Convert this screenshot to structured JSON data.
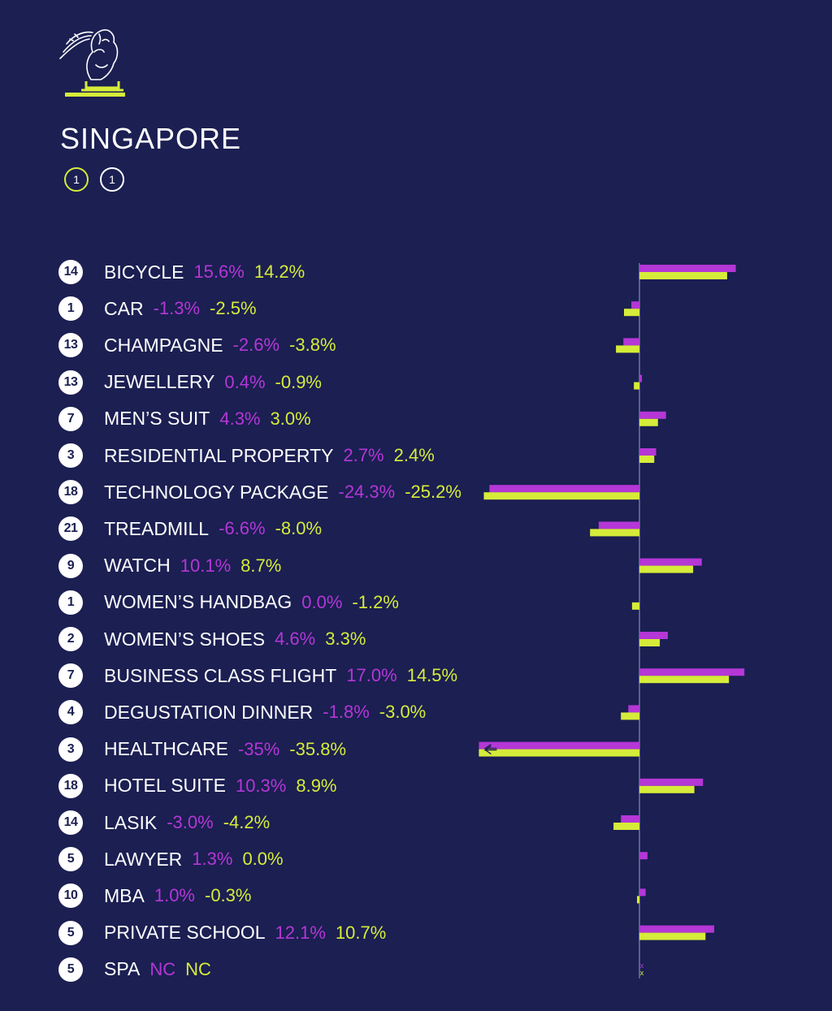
{
  "header": {
    "city": "SINGAPORE",
    "badge_lime": "1",
    "badge_white": "1"
  },
  "colors": {
    "background": "#1b1f52",
    "series_1": "#b437d6",
    "series_2": "#d6ec3a",
    "text": "#ffffff"
  },
  "icons": {
    "logo": "merlion-icon"
  },
  "chart_data": {
    "type": "bar",
    "orientation": "horizontal",
    "categories": [
      "BICYCLE",
      "CAR",
      "CHAMPAGNE",
      "JEWELLERY",
      "MEN’S SUIT",
      "RESIDENTIAL PROPERTY",
      "TECHNOLOGY PACKAGE",
      "TREADMILL",
      "WATCH",
      "WOMEN’S HANDBAG",
      "WOMEN’S SHOES",
      "BUSINESS CLASS FLIGHT",
      "DEGUSTATION DINNER",
      "HEALTHCARE",
      "HOTEL SUITE",
      "LASIK",
      "LAWYER",
      "MBA",
      "PRIVATE SCHOOL",
      "SPA"
    ],
    "ranks": [
      "14",
      "1",
      "13",
      "13",
      "7",
      "3",
      "18",
      "21",
      "9",
      "1",
      "2",
      "7",
      "4",
      "3",
      "18",
      "14",
      "5",
      "10",
      "5",
      "5"
    ],
    "series": [
      {
        "values": [
          15.6,
          -1.3,
          -2.6,
          0.4,
          4.3,
          2.7,
          -24.3,
          -6.6,
          10.1,
          0.0,
          4.6,
          17.0,
          -1.8,
          -35,
          10.3,
          -3.0,
          1.3,
          1.0,
          12.1,
          null
        ],
        "labels": [
          "15.6%",
          "-1.3%",
          "-2.6%",
          "0.4%",
          "4.3%",
          "2.7%",
          "-24.3%",
          "-6.6%",
          "10.1%",
          "0.0%",
          "4.6%",
          "17.0%",
          "-1.8%",
          "-35%",
          "10.3%",
          "-3.0%",
          "1.3%",
          "1.0%",
          "12.1%",
          "NC"
        ]
      },
      {
        "values": [
          14.2,
          -2.5,
          -3.8,
          -0.9,
          3.0,
          2.4,
          -25.2,
          -8.0,
          8.7,
          -1.2,
          3.3,
          14.5,
          -3.0,
          -35.8,
          8.9,
          -4.2,
          0.0,
          -0.3,
          10.7,
          null
        ],
        "labels": [
          "14.2%",
          "-2.5%",
          "-3.8%",
          "-0.9%",
          "3.0%",
          "2.4%",
          "-25.2%",
          "-8.0%",
          "8.7%",
          "-1.2%",
          "3.3%",
          "14.5%",
          "-3.0%",
          "-35.8%",
          "8.9%",
          "-4.2%",
          "0.0%",
          "-0.3%",
          "10.7%",
          "NC"
        ]
      }
    ],
    "missing_marker": "x"
  }
}
